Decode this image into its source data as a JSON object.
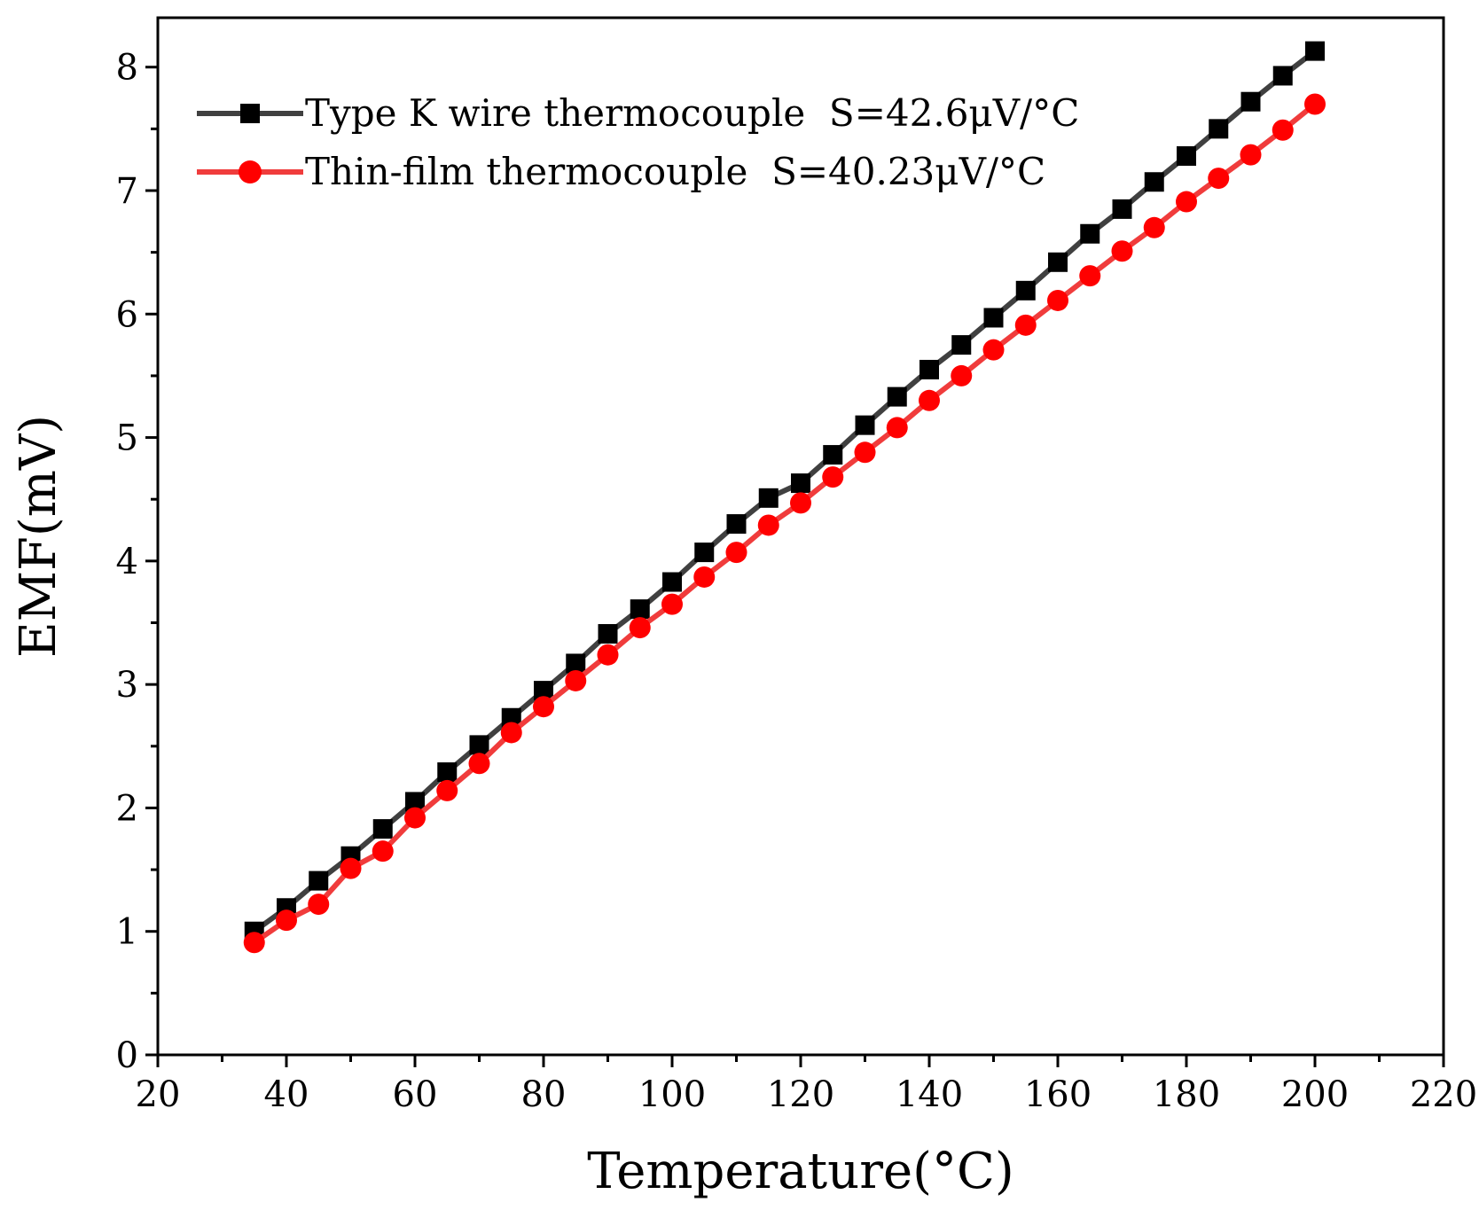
{
  "chart_data": {
    "type": "line",
    "title": "",
    "xlabel": "Temperature(°C)",
    "ylabel": "EMF(mV)",
    "xlim": [
      20,
      220
    ],
    "ylim": [
      0,
      8.4
    ],
    "xticks": [
      20,
      40,
      60,
      80,
      100,
      120,
      140,
      160,
      180,
      200,
      220
    ],
    "yticks": [
      0,
      1,
      2,
      3,
      4,
      5,
      6,
      7,
      8
    ],
    "grid": false,
    "legend_position": "top-left",
    "x": [
      35,
      40,
      45,
      50,
      55,
      60,
      65,
      70,
      75,
      80,
      85,
      90,
      95,
      100,
      105,
      110,
      115,
      120,
      125,
      130,
      135,
      140,
      145,
      150,
      155,
      160,
      165,
      170,
      175,
      180,
      185,
      190,
      195,
      200
    ],
    "series": [
      {
        "name": "Type K wire thermocouple  S=42.6μV/°C",
        "color": "#000000",
        "line_color": "#404040",
        "marker": "square",
        "values": [
          1.0,
          1.19,
          1.41,
          1.61,
          1.83,
          2.05,
          2.29,
          2.51,
          2.73,
          2.95,
          3.17,
          3.41,
          3.61,
          3.83,
          4.07,
          4.3,
          4.51,
          4.63,
          4.86,
          5.1,
          5.33,
          5.55,
          5.75,
          5.97,
          6.19,
          6.42,
          6.65,
          6.85,
          7.07,
          7.28,
          7.5,
          7.72,
          7.93,
          8.13
        ]
      },
      {
        "name": "Thin-film thermocouple  S=40.23μV/°C",
        "color": "#ff0000",
        "line_color": "#f03c3c",
        "marker": "circle",
        "values": [
          0.91,
          1.09,
          1.22,
          1.51,
          1.65,
          1.92,
          2.14,
          2.36,
          2.61,
          2.82,
          3.03,
          3.24,
          3.46,
          3.65,
          3.87,
          4.07,
          4.29,
          4.47,
          4.68,
          4.88,
          5.08,
          5.3,
          5.5,
          5.71,
          5.91,
          6.11,
          6.31,
          6.51,
          6.7,
          6.91,
          7.1,
          7.29,
          7.49,
          7.7
        ]
      }
    ]
  }
}
